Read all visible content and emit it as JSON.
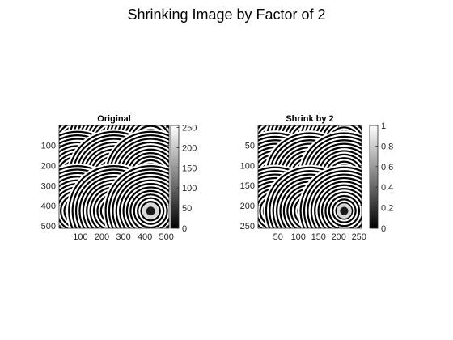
{
  "figure": {
    "title": "Shrinking Image by Factor of 2"
  },
  "chart_data": [
    {
      "type": "heatmap",
      "title": "Original",
      "xlabel": "",
      "ylabel": "",
      "xlim": [
        0.5,
        512.5
      ],
      "ylim": [
        0.5,
        512.5
      ],
      "y_direction": "reverse",
      "xticks": [
        100,
        200,
        300,
        400,
        500
      ],
      "xtick_labels": [
        "100",
        "200",
        "300",
        "400",
        "500"
      ],
      "yticks": [
        100,
        200,
        300,
        400,
        500
      ],
      "ytick_labels": [
        "100",
        "200",
        "300",
        "400",
        "500"
      ],
      "colormap": "gray",
      "clim": [
        0,
        255
      ],
      "colorbar_ticks": [
        0,
        50,
        100,
        150,
        200,
        250
      ],
      "colorbar_labels": [
        "0",
        "50",
        "100",
        "150",
        "200",
        "250"
      ],
      "ring_centers_x": [
        85.33,
        256,
        426.67
      ],
      "ring_centers_y": [
        85.33,
        256,
        426.67
      ]
    },
    {
      "type": "heatmap",
      "title": "Shrink by 2",
      "xlabel": "",
      "ylabel": "",
      "xlim": [
        0.5,
        256.5
      ],
      "ylim": [
        0.5,
        256.5
      ],
      "y_direction": "reverse",
      "xticks": [
        50,
        100,
        150,
        200,
        250
      ],
      "xtick_labels": [
        "50",
        "100",
        "150",
        "200",
        "250"
      ],
      "yticks": [
        50,
        100,
        150,
        200,
        250
      ],
      "ytick_labels": [
        "50",
        "100",
        "150",
        "200",
        "250"
      ],
      "colormap": "gray",
      "clim": [
        0,
        1
      ],
      "colorbar_ticks": [
        0,
        0.2,
        0.4,
        0.6,
        0.8,
        1
      ],
      "colorbar_labels": [
        "0",
        "0.2",
        "0.4",
        "0.6",
        "0.8",
        "1"
      ],
      "ring_centers_x": [
        42.67,
        128,
        213.33
      ],
      "ring_centers_y": [
        42.67,
        128,
        213.33
      ]
    }
  ]
}
